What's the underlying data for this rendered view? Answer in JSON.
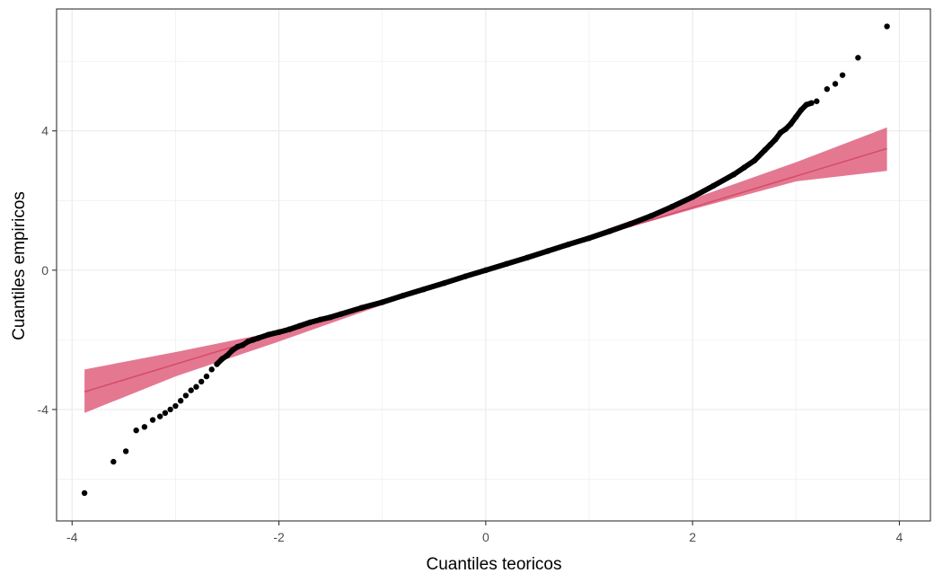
{
  "chart_data": {
    "type": "scatter",
    "title": "",
    "xlabel": "Cuantiles teoricos",
    "ylabel": "Cuantiles empiricos",
    "xlim": [
      -4.15,
      4.3
    ],
    "ylim": [
      -7.2,
      7.5
    ],
    "x_ticks": [
      -4,
      -2,
      0,
      2,
      4
    ],
    "y_ticks": [
      -4,
      0,
      4
    ],
    "x_tick_labels": [
      "-4",
      "-2",
      "0",
      "2",
      "4"
    ],
    "y_tick_labels": [
      "-4",
      "0",
      "4"
    ],
    "grid": true,
    "colors": {
      "points": "#000000",
      "line": "#d64d6a",
      "band": "#e0607e",
      "grid": "#ebebeb",
      "panel_border": "#333333"
    },
    "reference_line": {
      "intercept": 0.0,
      "slope": 0.9
    },
    "confidence_band": {
      "x": [
        -3.88,
        -3.0,
        -2.0,
        -1.0,
        0.0,
        1.0,
        2.0,
        3.0,
        3.88
      ],
      "lower": [
        -4.1,
        -3.05,
        -2.05,
        -1.0,
        0.0,
        0.9,
        1.75,
        2.55,
        2.85
      ],
      "upper": [
        -2.85,
        -2.35,
        -1.75,
        -0.9,
        0.0,
        1.0,
        2.05,
        3.1,
        4.1
      ]
    },
    "points": {
      "x": [
        -3.88,
        -3.6,
        -3.48,
        -3.38,
        -3.3,
        -3.22,
        -3.15,
        -3.1,
        -3.05,
        -3.0,
        -2.95,
        -2.9,
        -2.85,
        -2.8,
        -2.75,
        -2.7,
        -2.65,
        -2.6,
        -2.55,
        -2.5,
        -2.45,
        -2.4,
        -2.35,
        -2.3,
        -2.25,
        -2.2,
        -2.1,
        -2.0,
        -1.9,
        -1.8,
        -1.7,
        -1.6,
        -1.5,
        -1.4,
        -1.2,
        -1.0,
        -0.8,
        -0.6,
        -0.4,
        -0.2,
        0.0,
        0.2,
        0.4,
        0.6,
        0.8,
        1.0,
        1.2,
        1.4,
        1.6,
        1.8,
        2.0,
        2.2,
        2.4,
        2.5,
        2.6,
        2.7,
        2.75,
        2.8,
        2.85,
        2.9,
        2.95,
        3.0,
        3.05,
        3.1,
        3.15,
        3.2,
        3.3,
        3.38,
        3.45,
        3.6,
        3.88
      ],
      "y": [
        -6.4,
        -5.5,
        -5.2,
        -4.6,
        -4.5,
        -4.3,
        -4.2,
        -4.1,
        -4.0,
        -3.9,
        -3.75,
        -3.6,
        -3.45,
        -3.35,
        -3.2,
        -3.05,
        -2.85,
        -2.7,
        -2.55,
        -2.45,
        -2.3,
        -2.2,
        -2.15,
        -2.05,
        -2.0,
        -1.95,
        -1.85,
        -1.78,
        -1.7,
        -1.6,
        -1.5,
        -1.42,
        -1.35,
        -1.26,
        -1.08,
        -0.92,
        -0.73,
        -0.55,
        -0.37,
        -0.18,
        0.0,
        0.18,
        0.36,
        0.55,
        0.74,
        0.92,
        1.12,
        1.33,
        1.56,
        1.82,
        2.1,
        2.42,
        2.75,
        2.95,
        3.15,
        3.45,
        3.6,
        3.75,
        3.95,
        4.05,
        4.2,
        4.4,
        4.6,
        4.75,
        4.8,
        4.85,
        5.2,
        5.35,
        5.6,
        6.1,
        7.0
      ]
    }
  }
}
